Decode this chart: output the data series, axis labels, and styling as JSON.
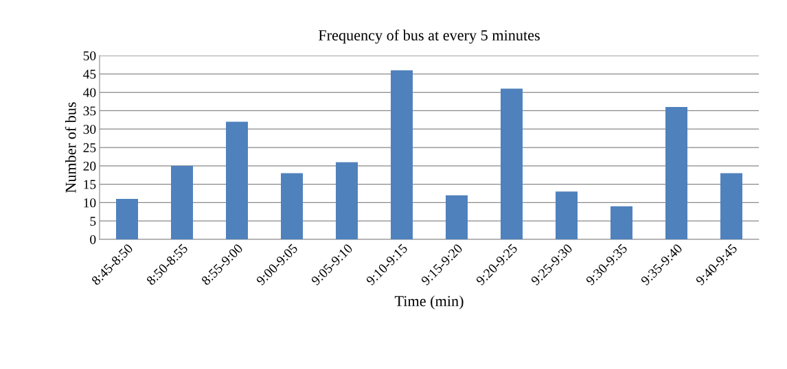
{
  "chart_data": {
    "type": "bar",
    "title": "Frequency of bus at every 5 minutes",
    "xlabel": "Time (min)",
    "ylabel": "Number of bus",
    "categories": [
      "8:45-8:50",
      "8:50-8:55",
      "8:55-9:00",
      "9:00-9:05",
      "9:05-9:10",
      "9:10-9:15",
      "9:15-9:20",
      "9:20-9:25",
      "9:25-9:30",
      "9:30-9:35",
      "9:35-9:40",
      "9:40-9:45"
    ],
    "values": [
      11,
      20,
      32,
      18,
      21,
      46,
      12,
      41,
      13,
      9,
      36,
      18
    ],
    "color": "#4f81bd",
    "ylim": [
      0,
      50
    ],
    "yticks": [
      0,
      5,
      10,
      15,
      20,
      25,
      30,
      35,
      40,
      45,
      50
    ],
    "grid": "y",
    "legend": false
  }
}
